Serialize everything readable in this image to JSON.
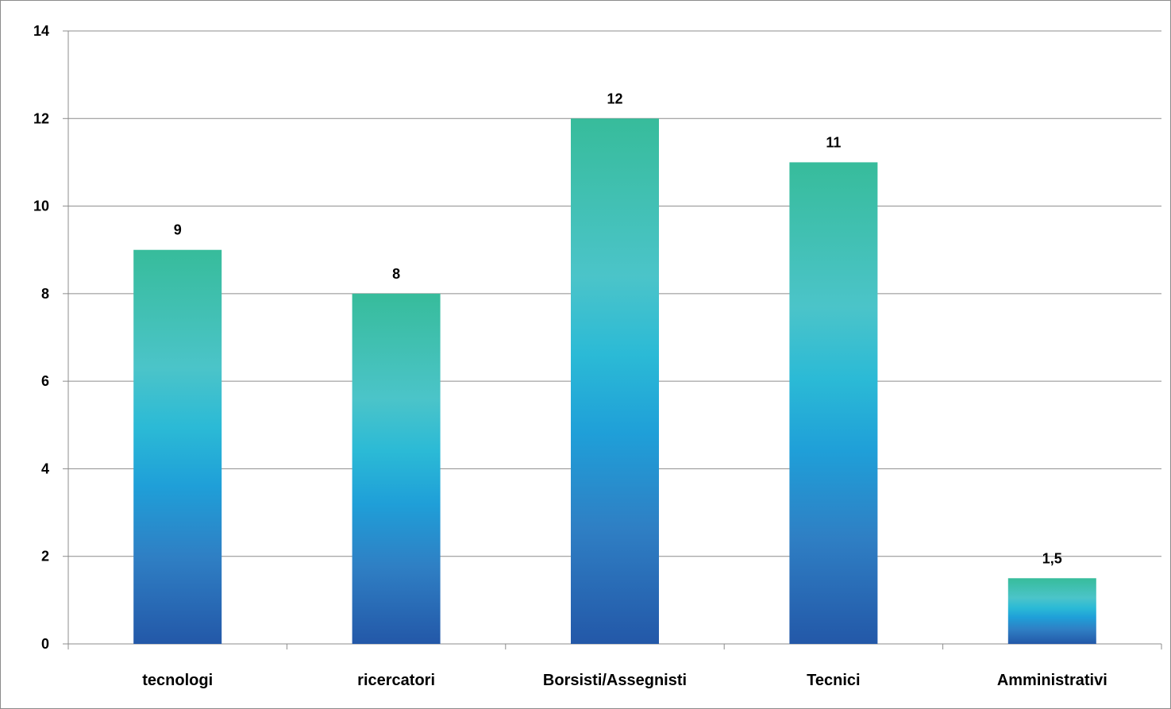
{
  "chart_data": {
    "type": "bar",
    "categories": [
      "tecnologi",
      "ricercatori",
      "Borsisti/Assegnisti",
      "Tecnici",
      "Amministrativi"
    ],
    "values": [
      9,
      8,
      12,
      11,
      1.5
    ],
    "data_labels": [
      "9",
      "8",
      "12",
      "11",
      "1,5"
    ],
    "title": "",
    "xlabel": "",
    "ylabel": "",
    "ylim": [
      0,
      14
    ],
    "yticks": [
      0,
      2,
      4,
      6,
      8,
      10,
      12,
      14
    ],
    "grid": true,
    "legend": "none",
    "colors": {
      "bar_top": "#37bc9b",
      "bar_mid_upper": "#4bc4c9",
      "bar_mid": "#2bbad6",
      "bar_mid_lower": "#1f9fd8",
      "bar_lower": "#2f7fc4",
      "bar_bottom": "#2358a8",
      "gridline": "#8c8c8c",
      "axis": "#8c8c8c"
    }
  }
}
